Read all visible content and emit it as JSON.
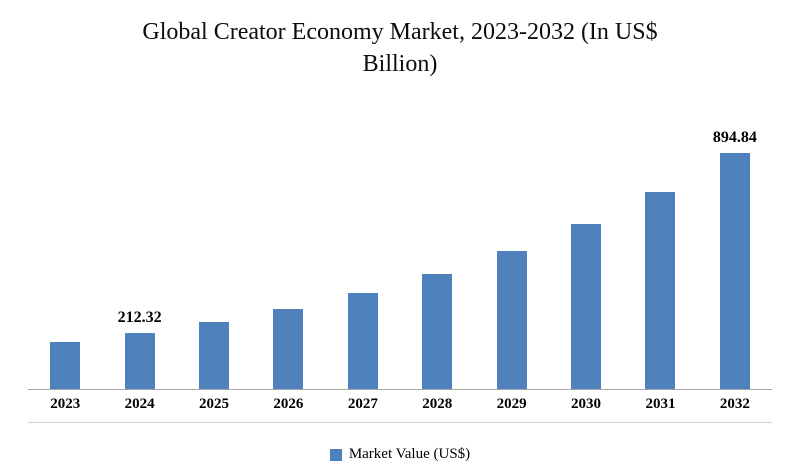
{
  "page": {
    "background": "#ffffff"
  },
  "chart_data": {
    "type": "bar",
    "title": "Global Creator Economy Market, 2023-2032 (In US$ Billion)",
    "categories": [
      "2023",
      "2024",
      "2025",
      "2026",
      "2027",
      "2028",
      "2029",
      "2030",
      "2031",
      "2032"
    ],
    "series": [
      {
        "name": "Market Value (US$)",
        "values": [
          177.39,
          212.32,
          254.12,
          304.17,
          364.08,
          435.76,
          521.56,
          624.25,
          747.15,
          894.84
        ]
      }
    ],
    "data_labels": [
      "",
      "212.32",
      "",
      "",
      "",
      "",
      "",
      "",
      "",
      "894.84"
    ],
    "legend": {
      "label": "Market Value (US$)",
      "position": "bottom"
    },
    "bar_color": "#4F81BD",
    "axis_line_color": "#a6a6a6",
    "xlabel": "",
    "ylabel": "",
    "ylim": [
      0,
      1000
    ],
    "grid": false
  }
}
